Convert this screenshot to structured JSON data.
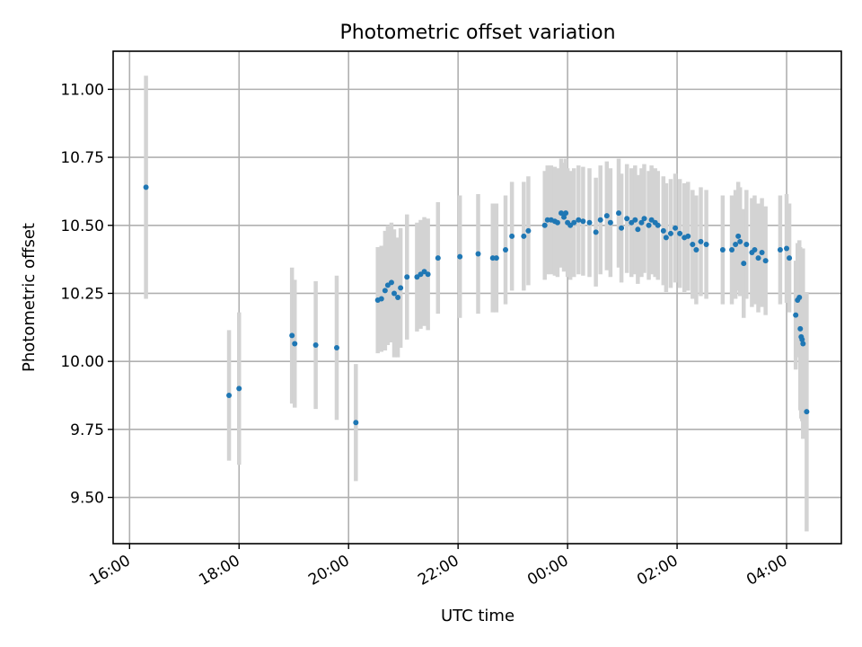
{
  "chart_data": {
    "type": "scatter",
    "title": "Photometric offset variation",
    "xlabel": "UTC time",
    "ylabel": "Photometric offset",
    "xlim_hours": [
      15.7,
      29.0
    ],
    "ylim": [
      9.33,
      11.14
    ],
    "grid": true,
    "x_tick_values": [
      16,
      18,
      20,
      22,
      24,
      26,
      28
    ],
    "x_tick_labels": [
      "16:00",
      "18:00",
      "20:00",
      "22:00",
      "00:00",
      "02:00",
      "04:00"
    ],
    "y_tick_values": [
      9.5,
      9.75,
      10.0,
      10.25,
      10.5,
      10.75,
      11.0
    ],
    "y_tick_labels": [
      "9.50",
      "9.75",
      "10.00",
      "10.25",
      "10.50",
      "10.75",
      "11.00"
    ],
    "colors": {
      "points": "#1f77b4",
      "errorbars": "#d3d3d3"
    },
    "series": [
      {
        "x_time": [
          "16:18",
          "17:49",
          "18:00",
          "18:58",
          "19:01",
          "19:24",
          "19:47",
          "20:08",
          "20:32",
          "20:36",
          "20:40",
          "20:43",
          "20:47",
          "20:50",
          "20:54",
          "20:57",
          "21:04",
          "21:15",
          "21:19",
          "21:23",
          "21:27",
          "21:38",
          "22:02",
          "22:22",
          "22:38",
          "22:42",
          "22:52",
          "22:59",
          "23:12",
          "23:17",
          "23:35",
          "23:38",
          "23:42",
          "23:46",
          "23:49",
          "23:53",
          "23:56",
          "23:58",
          "24:00",
          "24:03",
          "24:07",
          "24:12",
          "24:17",
          "24:24",
          "24:31",
          "24:36",
          "24:43",
          "24:47",
          "24:56",
          "24:59",
          "25:05",
          "25:10",
          "25:14",
          "25:17",
          "25:21",
          "25:24",
          "25:29",
          "25:32",
          "25:36",
          "25:39",
          "25:45",
          "25:48",
          "25:53",
          "25:58",
          "26:03",
          "26:08",
          "26:12",
          "26:17",
          "26:21",
          "26:26",
          "26:32",
          "26:50",
          "27:00",
          "27:04",
          "27:07",
          "27:09",
          "27:13",
          "27:16",
          "27:22",
          "27:25",
          "27:29",
          "27:33",
          "27:37",
          "27:53",
          "28:00",
          "28:03",
          "28:10",
          "28:12",
          "28:14",
          "28:15",
          "28:16",
          "28:17",
          "28:18",
          "28:22"
        ],
        "y": [
          10.64,
          9.875,
          9.9,
          10.095,
          10.065,
          10.06,
          10.05,
          9.775,
          10.225,
          10.23,
          10.26,
          10.28,
          10.29,
          10.25,
          10.235,
          10.27,
          10.31,
          10.31,
          10.32,
          10.33,
          10.32,
          10.38,
          10.385,
          10.395,
          10.38,
          10.38,
          10.41,
          10.46,
          10.46,
          10.48,
          10.5,
          10.52,
          10.52,
          10.515,
          10.51,
          10.545,
          10.53,
          10.545,
          10.51,
          10.5,
          10.51,
          10.52,
          10.515,
          10.51,
          10.475,
          10.52,
          10.535,
          10.51,
          10.545,
          10.49,
          10.525,
          10.51,
          10.52,
          10.485,
          10.51,
          10.525,
          10.5,
          10.52,
          10.51,
          10.5,
          10.48,
          10.455,
          10.47,
          10.49,
          10.47,
          10.455,
          10.46,
          10.43,
          10.41,
          10.44,
          10.43,
          10.41,
          10.41,
          10.43,
          10.46,
          10.44,
          10.36,
          10.43,
          10.4,
          10.41,
          10.38,
          10.4,
          10.37,
          10.41,
          10.415,
          10.38,
          10.17,
          10.225,
          10.235,
          10.12,
          10.09,
          10.08,
          10.065,
          9.815
        ],
        "yerr": [
          0.41,
          0.24,
          0.28,
          0.25,
          0.235,
          0.235,
          0.265,
          0.215,
          0.195,
          0.195,
          0.22,
          0.22,
          0.22,
          0.235,
          0.22,
          0.22,
          0.23,
          0.2,
          0.2,
          0.2,
          0.205,
          0.205,
          0.225,
          0.22,
          0.2,
          0.2,
          0.2,
          0.2,
          0.2,
          0.2,
          0.2,
          0.2,
          0.2,
          0.2,
          0.2,
          0.2,
          0.2,
          0.2,
          0.2,
          0.2,
          0.2,
          0.2,
          0.2,
          0.2,
          0.2,
          0.2,
          0.2,
          0.2,
          0.2,
          0.2,
          0.2,
          0.2,
          0.2,
          0.2,
          0.2,
          0.2,
          0.2,
          0.2,
          0.2,
          0.2,
          0.2,
          0.2,
          0.2,
          0.2,
          0.2,
          0.2,
          0.2,
          0.2,
          0.2,
          0.2,
          0.2,
          0.2,
          0.2,
          0.2,
          0.2,
          0.2,
          0.2,
          0.2,
          0.2,
          0.2,
          0.2,
          0.2,
          0.2,
          0.2,
          0.2,
          0.2,
          0.2,
          0.21,
          0.21,
          0.3,
          0.3,
          0.3,
          0.35,
          0.44
        ]
      }
    ]
  }
}
